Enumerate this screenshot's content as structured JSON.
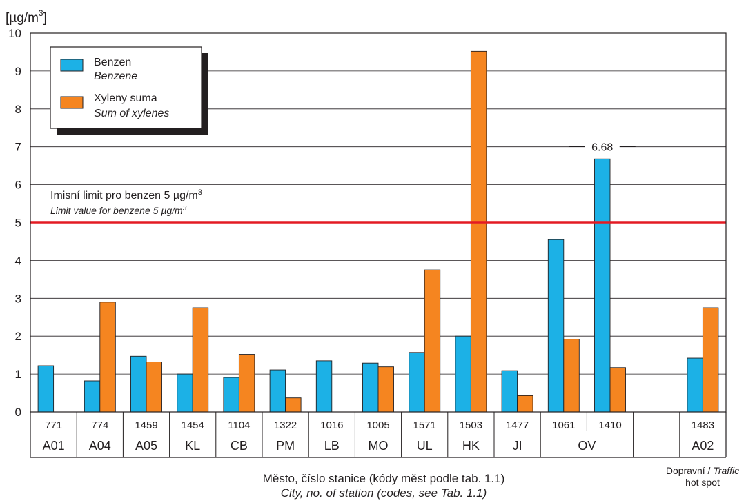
{
  "chart_data": {
    "type": "bar",
    "y_unit": {
      "base": "[µg/m",
      "sup": "3",
      "close": "]"
    },
    "ylim": [
      0,
      10
    ],
    "yticks": [
      "0",
      "1",
      "2",
      "3",
      "4",
      "5",
      "6",
      "7",
      "8",
      "9",
      "10"
    ],
    "grid": true,
    "legend_position": "top-left",
    "series": [
      {
        "name": "Benzen",
        "name_en": "Benzene",
        "color": "#1cb1e6"
      },
      {
        "name": "Xyleny suma",
        "name_en": "Sum of xylenes",
        "color": "#f58520"
      }
    ],
    "groups": [
      {
        "station": "771",
        "city": "A01",
        "benzene": 1.22,
        "xylenes": null
      },
      {
        "station": "774",
        "city": "A04",
        "benzene": 0.82,
        "xylenes": 2.9
      },
      {
        "station": "1459",
        "city": "A05",
        "benzene": 1.47,
        "xylenes": 1.32
      },
      {
        "station": "1454",
        "city": "KL",
        "benzene": 1.0,
        "xylenes": 2.75
      },
      {
        "station": "1104",
        "city": "CB",
        "benzene": 0.91,
        "xylenes": 1.52
      },
      {
        "station": "1322",
        "city": "PM",
        "benzene": 1.11,
        "xylenes": 0.37
      },
      {
        "station": "1016",
        "city": "LB",
        "benzene": 1.35,
        "xylenes": null
      },
      {
        "station": "1005",
        "city": "MO",
        "benzene": 1.29,
        "xylenes": 1.19
      },
      {
        "station": "1571",
        "city": "UL",
        "benzene": 1.57,
        "xylenes": 3.75
      },
      {
        "station": "1503",
        "city": "HK",
        "benzene": 2.0,
        "xylenes": 9.52
      },
      {
        "station": "1477",
        "city": "JI",
        "benzene": 1.09,
        "xylenes": 0.43
      },
      {
        "station": "1061",
        "city": "OV",
        "benzene": 4.55,
        "xylenes": 1.92
      },
      {
        "station": "1410",
        "city": "OV",
        "benzene": 6.68,
        "xylenes": 1.17
      },
      {
        "station": "",
        "city": "",
        "benzene": null,
        "xylenes": null
      },
      {
        "station": "1483",
        "city": "A02",
        "benzene": 1.42,
        "xylenes": 2.75
      }
    ],
    "limit": {
      "value": 5,
      "color": "#e31b23",
      "label_cz": "Imisní limit pro benzen 5 µg/m",
      "label_en": "Limit value for benzene 5 µg/m",
      "sup": "3"
    },
    "annotation": "6.68",
    "xlabel_cz": "Město, číslo stanice (kódy měst podle tab. 1.1)",
    "xlabel_en": "City, no. of station (codes, see Tab. 1.1)",
    "traffic_label_cz": "Dopravní / ",
    "traffic_label_en": "Traffic",
    "traffic_label_2": "hot spot"
  }
}
